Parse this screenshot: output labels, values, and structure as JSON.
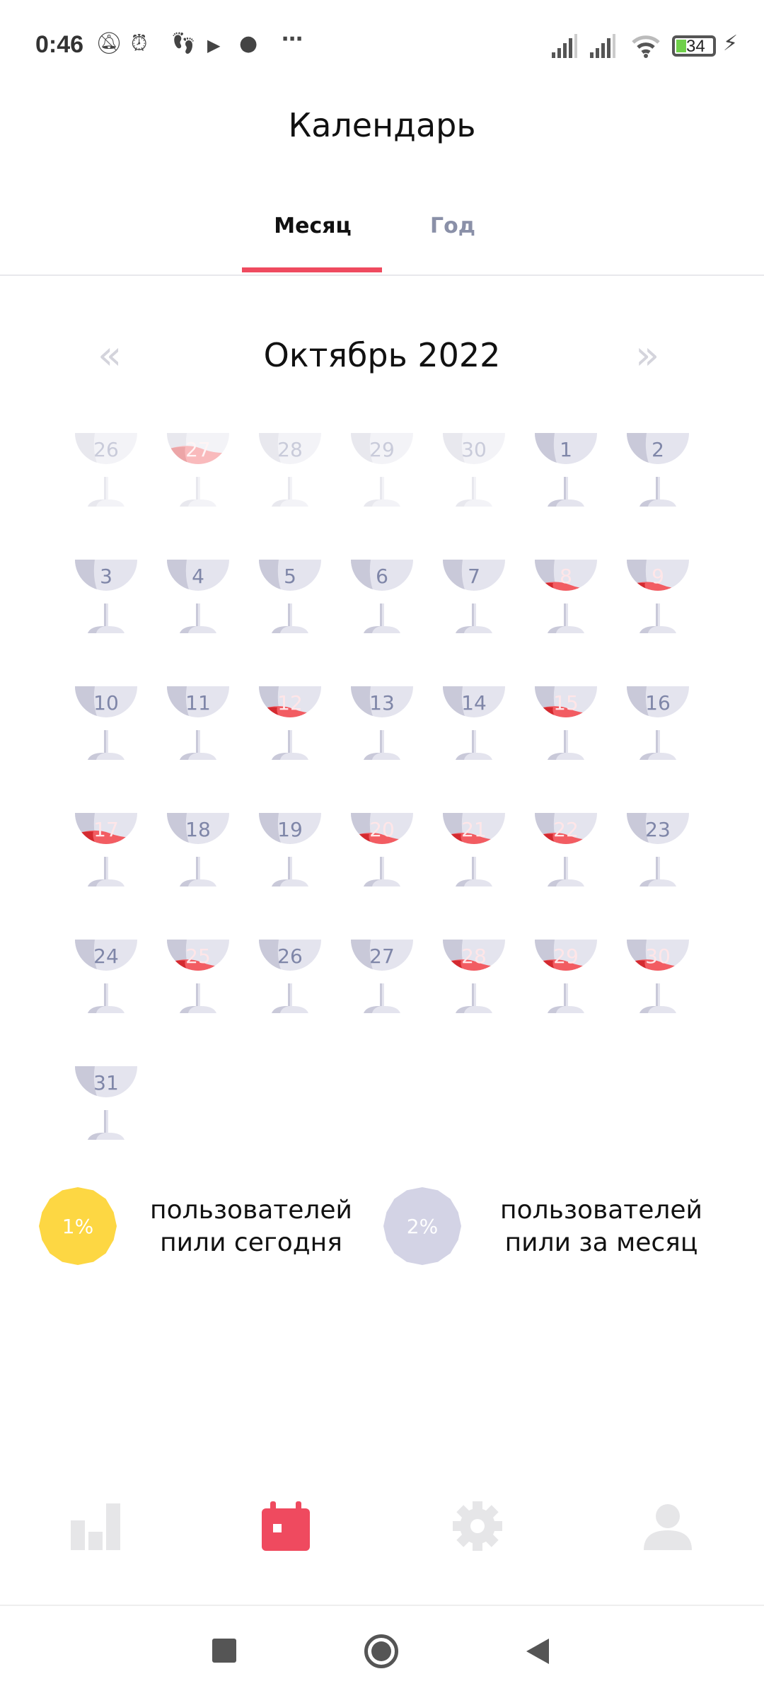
{
  "status_bar": {
    "time": "0:46",
    "battery": "34",
    "icons": [
      "bell-off-icon",
      "alarm-icon",
      "footsteps-icon",
      "play-icon",
      "record-icon",
      "more-icon",
      "signal-icon",
      "signal-icon",
      "wifi-icon",
      "battery-icon",
      "charging-icon"
    ]
  },
  "header": {
    "title": "Календарь"
  },
  "tabs": [
    {
      "label": "Месяц",
      "active": true
    },
    {
      "label": "Год",
      "active": false
    }
  ],
  "calendar": {
    "month_label": "Октябрь 2022",
    "prev_icon": "«",
    "next_icon": "»",
    "days": [
      {
        "day": "26",
        "fill": 0,
        "muted": true
      },
      {
        "day": "27",
        "fill": 0.7,
        "muted": true
      },
      {
        "day": "28",
        "fill": 0,
        "muted": true
      },
      {
        "day": "29",
        "fill": 0,
        "muted": true
      },
      {
        "day": "30",
        "fill": 0,
        "muted": true
      },
      {
        "day": "1",
        "fill": 0
      },
      {
        "day": "2",
        "fill": 0
      },
      {
        "day": "3",
        "fill": 0
      },
      {
        "day": "4",
        "fill": 0
      },
      {
        "day": "5",
        "fill": 0
      },
      {
        "day": "6",
        "fill": 0
      },
      {
        "day": "7",
        "fill": 0
      },
      {
        "day": "8",
        "fill": 0.5
      },
      {
        "day": "9",
        "fill": 0.5
      },
      {
        "day": "10",
        "fill": 0
      },
      {
        "day": "11",
        "fill": 0
      },
      {
        "day": "12",
        "fill": 0.55
      },
      {
        "day": "13",
        "fill": 0
      },
      {
        "day": "14",
        "fill": 0
      },
      {
        "day": "15",
        "fill": 0.55
      },
      {
        "day": "16",
        "fill": 0
      },
      {
        "day": "17",
        "fill": 0.6
      },
      {
        "day": "18",
        "fill": 0
      },
      {
        "day": "19",
        "fill": 0
      },
      {
        "day": "20",
        "fill": 0.55
      },
      {
        "day": "21",
        "fill": 0.55
      },
      {
        "day": "22",
        "fill": 0.55
      },
      {
        "day": "23",
        "fill": 0
      },
      {
        "day": "24",
        "fill": 0
      },
      {
        "day": "25",
        "fill": 0.55
      },
      {
        "day": "26",
        "fill": 0
      },
      {
        "day": "27",
        "fill": 0
      },
      {
        "day": "28",
        "fill": 0.55
      },
      {
        "day": "29",
        "fill": 0.55
      },
      {
        "day": "30",
        "fill": 0.55
      },
      {
        "day": "31",
        "fill": 0
      }
    ]
  },
  "stats": [
    {
      "value": "1%",
      "label_line1": "пользователей",
      "label_line2": "пили сегодня",
      "color": "#fdd743"
    },
    {
      "value": "2%",
      "label_line1": "пользователей",
      "label_line2": "пили за месяц",
      "color": "#d3d3e5"
    }
  ],
  "bottom_nav": [
    {
      "icon": "bar-chart-icon",
      "active": false
    },
    {
      "icon": "calendar-icon",
      "active": true
    },
    {
      "icon": "gear-icon",
      "active": false
    },
    {
      "icon": "profile-icon",
      "active": false
    }
  ],
  "colors": {
    "accent": "#ef4a5f",
    "wine": "#f25c62",
    "wine_dark": "#d42a30",
    "glass": "#e4e4ee",
    "glass_dark": "#c9c9d9"
  }
}
